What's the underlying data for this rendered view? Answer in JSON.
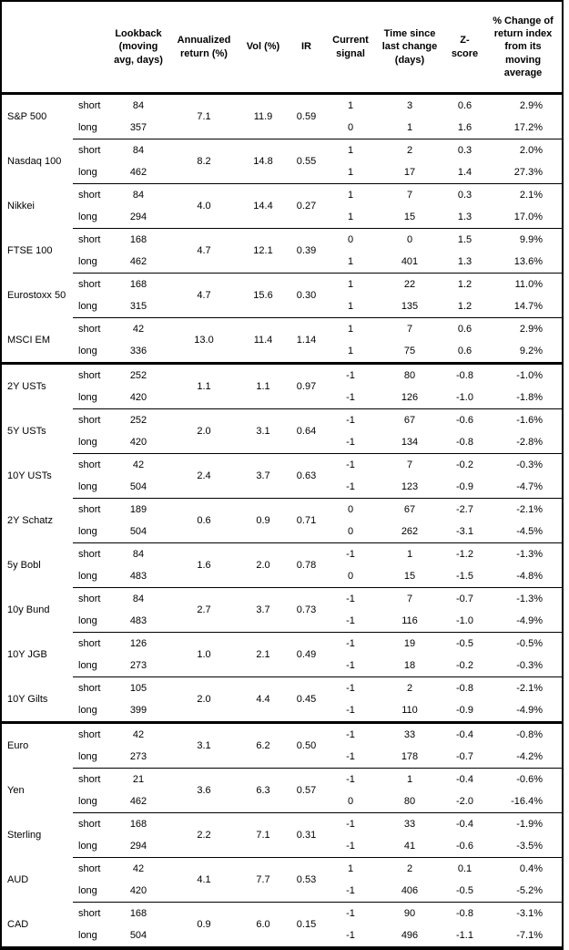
{
  "table": {
    "headers": {
      "asset": "",
      "horizon": "",
      "lookback": "Lookback (moving avg, days)",
      "annualized_return": "Annualized return (%)",
      "vol": "Vol (%)",
      "ir": "IR",
      "current_signal": "Current signal",
      "time_since": "Time since last change (days)",
      "z_score": "Z-score",
      "pct_change": "% Change of return index from its moving average"
    },
    "groups": [
      [
        {
          "name": "S&P 500",
          "annualized_return": "7.1",
          "vol": "11.9",
          "ir": "0.59",
          "rows": [
            {
              "horizon": "short",
              "lookback": "84",
              "signal": "1",
              "time_since_days": "3",
              "z_score": "0.6",
              "pct_change": "2.9%"
            },
            {
              "horizon": "long",
              "lookback": "357",
              "signal": "0",
              "time_since_days": "1",
              "z_score": "1.6",
              "pct_change": "17.2%"
            }
          ]
        },
        {
          "name": "Nasdaq 100",
          "annualized_return": "8.2",
          "vol": "14.8",
          "ir": "0.55",
          "rows": [
            {
              "horizon": "short",
              "lookback": "84",
              "signal": "1",
              "time_since_days": "2",
              "z_score": "0.3",
              "pct_change": "2.0%"
            },
            {
              "horizon": "long",
              "lookback": "462",
              "signal": "1",
              "time_since_days": "17",
              "z_score": "1.4",
              "pct_change": "27.3%"
            }
          ]
        },
        {
          "name": "Nikkei",
          "annualized_return": "4.0",
          "vol": "14.4",
          "ir": "0.27",
          "rows": [
            {
              "horizon": "short",
              "lookback": "84",
              "signal": "1",
              "time_since_days": "7",
              "z_score": "0.3",
              "pct_change": "2.1%"
            },
            {
              "horizon": "long",
              "lookback": "294",
              "signal": "1",
              "time_since_days": "15",
              "z_score": "1.3",
              "pct_change": "17.0%"
            }
          ]
        },
        {
          "name": "FTSE 100",
          "annualized_return": "4.7",
          "vol": "12.1",
          "ir": "0.39",
          "rows": [
            {
              "horizon": "short",
              "lookback": "168",
              "signal": "0",
              "time_since_days": "0",
              "z_score": "1.5",
              "pct_change": "9.9%"
            },
            {
              "horizon": "long",
              "lookback": "462",
              "signal": "1",
              "time_since_days": "401",
              "z_score": "1.3",
              "pct_change": "13.6%"
            }
          ]
        },
        {
          "name": "Eurostoxx 50",
          "annualized_return": "4.7",
          "vol": "15.6",
          "ir": "0.30",
          "rows": [
            {
              "horizon": "short",
              "lookback": "168",
              "signal": "1",
              "time_since_days": "22",
              "z_score": "1.2",
              "pct_change": "11.0%"
            },
            {
              "horizon": "long",
              "lookback": "315",
              "signal": "1",
              "time_since_days": "135",
              "z_score": "1.2",
              "pct_change": "14.7%"
            }
          ]
        },
        {
          "name": "MSCI EM",
          "annualized_return": "13.0",
          "vol": "11.4",
          "ir": "1.14",
          "rows": [
            {
              "horizon": "short",
              "lookback": "42",
              "signal": "1",
              "time_since_days": "7",
              "z_score": "0.6",
              "pct_change": "2.9%"
            },
            {
              "horizon": "long",
              "lookback": "336",
              "signal": "1",
              "time_since_days": "75",
              "z_score": "0.6",
              "pct_change": "9.2%"
            }
          ]
        }
      ],
      [
        {
          "name": "2Y USTs",
          "annualized_return": "1.1",
          "vol": "1.1",
          "ir": "0.97",
          "rows": [
            {
              "horizon": "short",
              "lookback": "252",
              "signal": "-1",
              "time_since_days": "80",
              "z_score": "-0.8",
              "pct_change": "-1.0%"
            },
            {
              "horizon": "long",
              "lookback": "420",
              "signal": "-1",
              "time_since_days": "126",
              "z_score": "-1.0",
              "pct_change": "-1.8%"
            }
          ]
        },
        {
          "name": "5Y USTs",
          "annualized_return": "2.0",
          "vol": "3.1",
          "ir": "0.64",
          "rows": [
            {
              "horizon": "short",
              "lookback": "252",
              "signal": "-1",
              "time_since_days": "67",
              "z_score": "-0.6",
              "pct_change": "-1.6%"
            },
            {
              "horizon": "long",
              "lookback": "420",
              "signal": "-1",
              "time_since_days": "134",
              "z_score": "-0.8",
              "pct_change": "-2.8%"
            }
          ]
        },
        {
          "name": "10Y USTs",
          "annualized_return": "2.4",
          "vol": "3.7",
          "ir": "0.63",
          "rows": [
            {
              "horizon": "short",
              "lookback": "42",
              "signal": "-1",
              "time_since_days": "7",
              "z_score": "-0.2",
              "pct_change": "-0.3%"
            },
            {
              "horizon": "long",
              "lookback": "504",
              "signal": "-1",
              "time_since_days": "123",
              "z_score": "-0.9",
              "pct_change": "-4.7%"
            }
          ]
        },
        {
          "name": "2Y Schatz",
          "annualized_return": "0.6",
          "vol": "0.9",
          "ir": "0.71",
          "rows": [
            {
              "horizon": "short",
              "lookback": "189",
              "signal": "0",
              "time_since_days": "67",
              "z_score": "-2.7",
              "pct_change": "-2.1%"
            },
            {
              "horizon": "long",
              "lookback": "504",
              "signal": "0",
              "time_since_days": "262",
              "z_score": "-3.1",
              "pct_change": "-4.5%"
            }
          ]
        },
        {
          "name": "5y Bobl",
          "annualized_return": "1.6",
          "vol": "2.0",
          "ir": "0.78",
          "rows": [
            {
              "horizon": "short",
              "lookback": "84",
              "signal": "-1",
              "time_since_days": "1",
              "z_score": "-1.2",
              "pct_change": "-1.3%"
            },
            {
              "horizon": "long",
              "lookback": "483",
              "signal": "0",
              "time_since_days": "15",
              "z_score": "-1.5",
              "pct_change": "-4.8%"
            }
          ]
        },
        {
          "name": "10y Bund",
          "annualized_return": "2.7",
          "vol": "3.7",
          "ir": "0.73",
          "rows": [
            {
              "horizon": "short",
              "lookback": "84",
              "signal": "-1",
              "time_since_days": "7",
              "z_score": "-0.7",
              "pct_change": "-1.3%"
            },
            {
              "horizon": "long",
              "lookback": "483",
              "signal": "-1",
              "time_since_days": "116",
              "z_score": "-1.0",
              "pct_change": "-4.9%"
            }
          ]
        },
        {
          "name": "10Y JGB",
          "annualized_return": "1.0",
          "vol": "2.1",
          "ir": "0.49",
          "rows": [
            {
              "horizon": "short",
              "lookback": "126",
              "signal": "-1",
              "time_since_days": "19",
              "z_score": "-0.5",
              "pct_change": "-0.5%"
            },
            {
              "horizon": "long",
              "lookback": "273",
              "signal": "-1",
              "time_since_days": "18",
              "z_score": "-0.2",
              "pct_change": "-0.3%"
            }
          ]
        },
        {
          "name": "10Y Gilts",
          "annualized_return": "2.0",
          "vol": "4.4",
          "ir": "0.45",
          "rows": [
            {
              "horizon": "short",
              "lookback": "105",
              "signal": "-1",
              "time_since_days": "2",
              "z_score": "-0.8",
              "pct_change": "-2.1%"
            },
            {
              "horizon": "long",
              "lookback": "399",
              "signal": "-1",
              "time_since_days": "110",
              "z_score": "-0.9",
              "pct_change": "-4.9%"
            }
          ]
        }
      ],
      [
        {
          "name": "Euro",
          "annualized_return": "3.1",
          "vol": "6.2",
          "ir": "0.50",
          "rows": [
            {
              "horizon": "short",
              "lookback": "42",
              "signal": "-1",
              "time_since_days": "33",
              "z_score": "-0.4",
              "pct_change": "-0.8%"
            },
            {
              "horizon": "long",
              "lookback": "273",
              "signal": "-1",
              "time_since_days": "178",
              "z_score": "-0.7",
              "pct_change": "-4.2%"
            }
          ]
        },
        {
          "name": "Yen",
          "annualized_return": "3.6",
          "vol": "6.3",
          "ir": "0.57",
          "rows": [
            {
              "horizon": "short",
              "lookback": "21",
              "signal": "-1",
              "time_since_days": "1",
              "z_score": "-0.4",
              "pct_change": "-0.6%"
            },
            {
              "horizon": "long",
              "lookback": "462",
              "signal": "0",
              "time_since_days": "80",
              "z_score": "-2.0",
              "pct_change": "-16.4%"
            }
          ]
        },
        {
          "name": "Sterling",
          "annualized_return": "2.2",
          "vol": "7.1",
          "ir": "0.31",
          "rows": [
            {
              "horizon": "short",
              "lookback": "168",
              "signal": "-1",
              "time_since_days": "33",
              "z_score": "-0.4",
              "pct_change": "-1.9%"
            },
            {
              "horizon": "long",
              "lookback": "294",
              "signal": "-1",
              "time_since_days": "41",
              "z_score": "-0.6",
              "pct_change": "-3.5%"
            }
          ]
        },
        {
          "name": "AUD",
          "annualized_return": "4.1",
          "vol": "7.7",
          "ir": "0.53",
          "rows": [
            {
              "horizon": "short",
              "lookback": "42",
              "signal": "1",
              "time_since_days": "2",
              "z_score": "0.1",
              "pct_change": "0.4%"
            },
            {
              "horizon": "long",
              "lookback": "420",
              "signal": "-1",
              "time_since_days": "406",
              "z_score": "-0.5",
              "pct_change": "-5.2%"
            }
          ]
        },
        {
          "name": "CAD",
          "annualized_return": "0.9",
          "vol": "6.0",
          "ir": "0.15",
          "rows": [
            {
              "horizon": "short",
              "lookback": "168",
              "signal": "-1",
              "time_since_days": "90",
              "z_score": "-0.8",
              "pct_change": "-3.1%"
            },
            {
              "horizon": "long",
              "lookback": "504",
              "signal": "-1",
              "time_since_days": "496",
              "z_score": "-1.1",
              "pct_change": "-7.1%"
            }
          ]
        }
      ]
    ]
  }
}
